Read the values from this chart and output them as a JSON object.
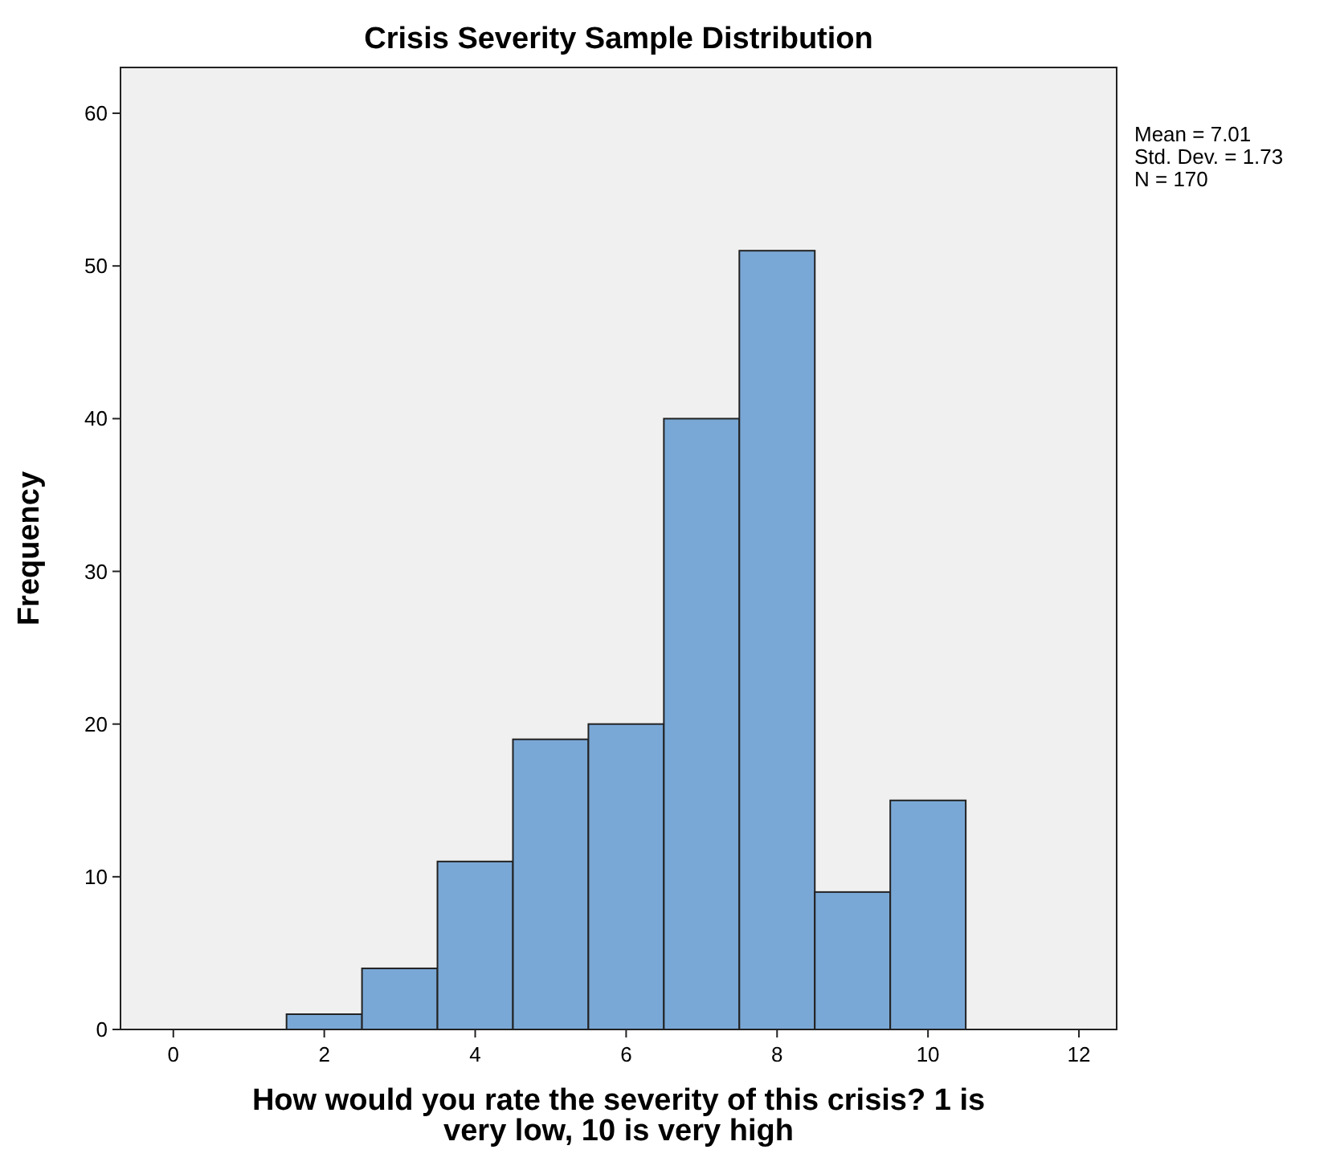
{
  "chart_data": {
    "type": "histogram",
    "title": "Crisis Severity Sample Distribution",
    "xlabel": "How would you rate the severity of this crisis? 1 is very low, 10 is very high",
    "ylabel": "Frequency",
    "bins": [
      1.5,
      2.5,
      3.5,
      4.5,
      5.5,
      6.5,
      7.5,
      8.5,
      9.5,
      10.5
    ],
    "values": [
      1,
      4,
      11,
      19,
      20,
      40,
      51,
      9,
      15
    ],
    "color": "#7aa8d6",
    "xlim": [
      -0.7,
      12.5
    ],
    "xticks": [
      0,
      2,
      4,
      6,
      8,
      10,
      12
    ],
    "ylim": [
      0,
      63
    ],
    "yticks": [
      0,
      10,
      20,
      30,
      40,
      50,
      60
    ],
    "grid": false,
    "annotations": [
      "Mean = 7.01",
      "Std. Dev. = 1.73",
      "N = 170"
    ]
  }
}
